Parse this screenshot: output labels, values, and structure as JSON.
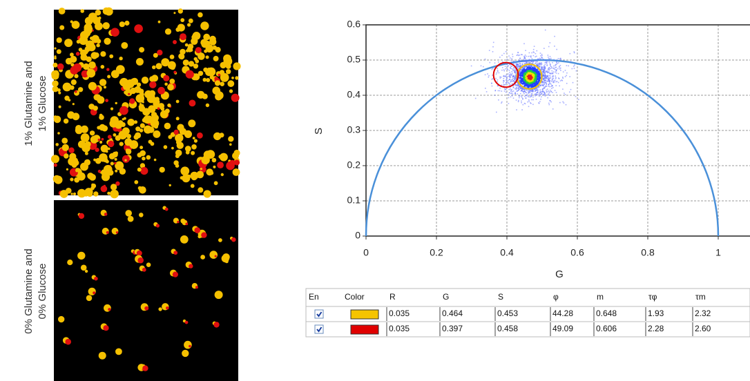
{
  "image_labels": [
    [
      "1% Glutamine and",
      "1% Glucose"
    ],
    [
      "0% Glutamine and",
      "0% Glucose"
    ]
  ],
  "chart_data": {
    "type": "phasor",
    "xlabel": "G",
    "ylabel": "S",
    "xlim": [
      0,
      1.1
    ],
    "ylim": [
      0,
      0.6
    ],
    "xticks": [
      0,
      0.2,
      0.4,
      0.6,
      0.8,
      1
    ],
    "yticks": [
      0,
      0.1,
      0.2,
      0.3,
      0.4,
      0.5,
      0.6
    ],
    "grid": true,
    "circle_color": "#4a90d9"
  },
  "table": {
    "columns": [
      "En",
      "Color",
      "R",
      "G",
      "S",
      "φ",
      "m",
      "τφ",
      "τm"
    ],
    "rows": [
      {
        "enabled": true,
        "color": "#f5c400",
        "cells": [
          0.035,
          0.464,
          0.453,
          44.28,
          0.648,
          1.93,
          2.32
        ]
      },
      {
        "enabled": true,
        "color": "#e00000",
        "cells": [
          0.035,
          0.397,
          0.458,
          49.09,
          0.606,
          2.28,
          {
            "value": 2.6,
            "label": "2.60"
          }
        ]
      }
    ]
  }
}
